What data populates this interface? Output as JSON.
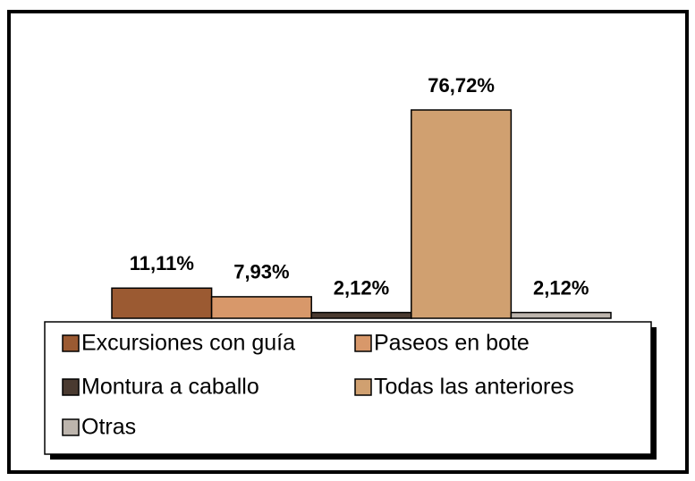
{
  "chart_data": {
    "type": "bar",
    "categories": [
      null
    ],
    "series": [
      {
        "name": "Excursiones con guía",
        "color": "#9b5a32",
        "values": [
          11.11
        ],
        "value_labels": [
          "11,11%"
        ]
      },
      {
        "name": "Paseos en bote",
        "color": "#d8986a",
        "values": [
          7.93
        ],
        "value_labels": [
          "7,93%"
        ]
      },
      {
        "name": "Montura a caballo",
        "color": "#4a3a30",
        "values": [
          2.12
        ],
        "value_labels": [
          "2,12%"
        ]
      },
      {
        "name": "Todas las anteriores",
        "color": "#d0a070",
        "values": [
          76.72
        ],
        "value_labels": [
          "76,72%"
        ]
      },
      {
        "name": "Otras",
        "color": "#bdb5ad",
        "values": [
          2.12
        ],
        "value_labels": [
          "2,12%"
        ]
      }
    ]
  }
}
